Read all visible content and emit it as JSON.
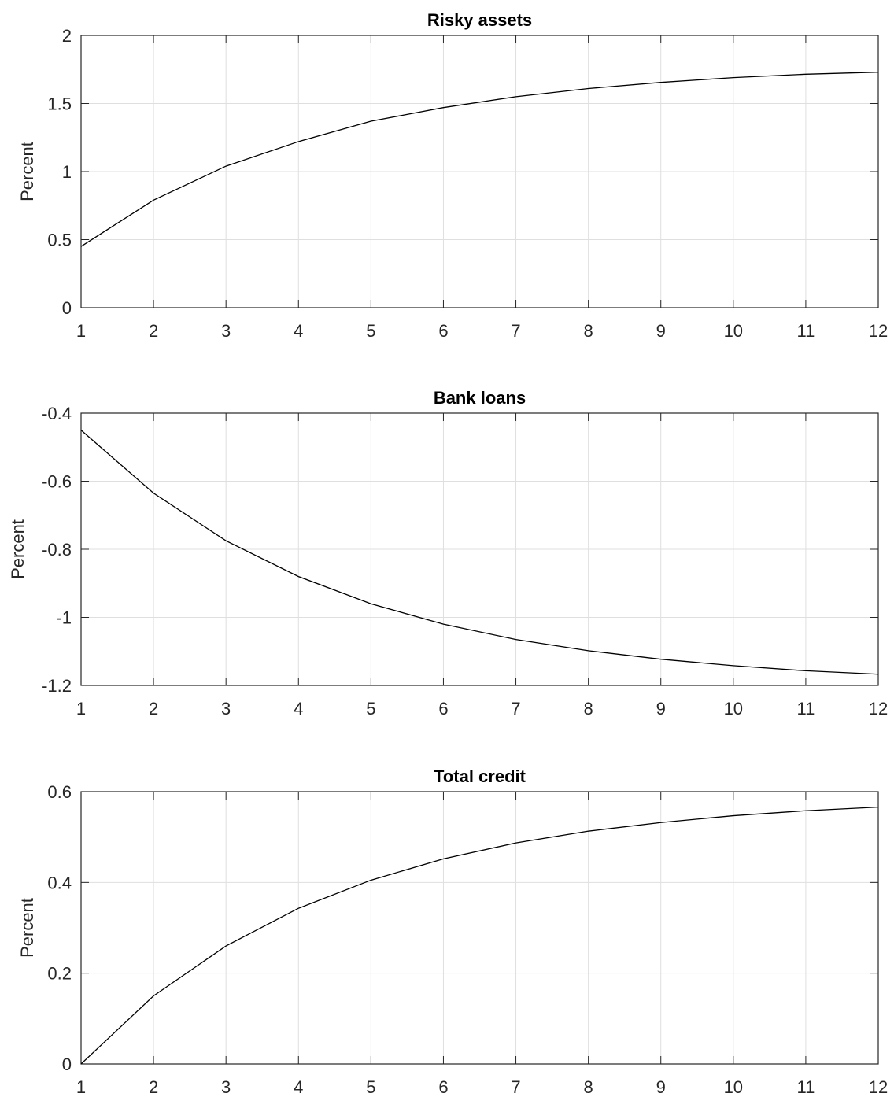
{
  "chart_data": [
    {
      "type": "line",
      "title": "Risky assets",
      "ylabel": "Percent",
      "x": [
        1,
        2,
        3,
        4,
        5,
        6,
        7,
        8,
        9,
        10,
        11,
        12
      ],
      "values": [
        0.45,
        0.79,
        1.04,
        1.22,
        1.37,
        1.47,
        1.55,
        1.61,
        1.655,
        1.69,
        1.715,
        1.73
      ],
      "color": "#000000",
      "xlim": [
        1,
        12
      ],
      "xticks": [
        1,
        2,
        3,
        4,
        5,
        6,
        7,
        8,
        9,
        10,
        11,
        12
      ],
      "ylim": [
        0,
        2
      ],
      "yticks": [
        0,
        0.5,
        1,
        1.5,
        2
      ],
      "grid": true
    },
    {
      "type": "line",
      "title": "Bank loans",
      "ylabel": "Percent",
      "x": [
        1,
        2,
        3,
        4,
        5,
        6,
        7,
        8,
        9,
        10,
        11,
        12
      ],
      "values": [
        -0.45,
        -0.635,
        -0.775,
        -0.88,
        -0.96,
        -1.02,
        -1.065,
        -1.098,
        -1.123,
        -1.142,
        -1.157,
        -1.167
      ],
      "color": "#000000",
      "xlim": [
        1,
        12
      ],
      "xticks": [
        1,
        2,
        3,
        4,
        5,
        6,
        7,
        8,
        9,
        10,
        11,
        12
      ],
      "ylim": [
        -1.2,
        -0.4
      ],
      "yticks": [
        -1.2,
        -1,
        -0.8,
        -0.6,
        -0.4
      ],
      "grid": true
    },
    {
      "type": "line",
      "title": "Total credit",
      "ylabel": "Percent",
      "x": [
        1,
        2,
        3,
        4,
        5,
        6,
        7,
        8,
        9,
        10,
        11,
        12
      ],
      "values": [
        0.0,
        0.15,
        0.26,
        0.343,
        0.405,
        0.452,
        0.487,
        0.513,
        0.532,
        0.547,
        0.558,
        0.566
      ],
      "color": "#000000",
      "xlim": [
        1,
        12
      ],
      "xticks": [
        1,
        2,
        3,
        4,
        5,
        6,
        7,
        8,
        9,
        10,
        11,
        12
      ],
      "ylim": [
        0,
        0.6
      ],
      "yticks": [
        0,
        0.2,
        0.4,
        0.6
      ],
      "grid": true
    }
  ]
}
